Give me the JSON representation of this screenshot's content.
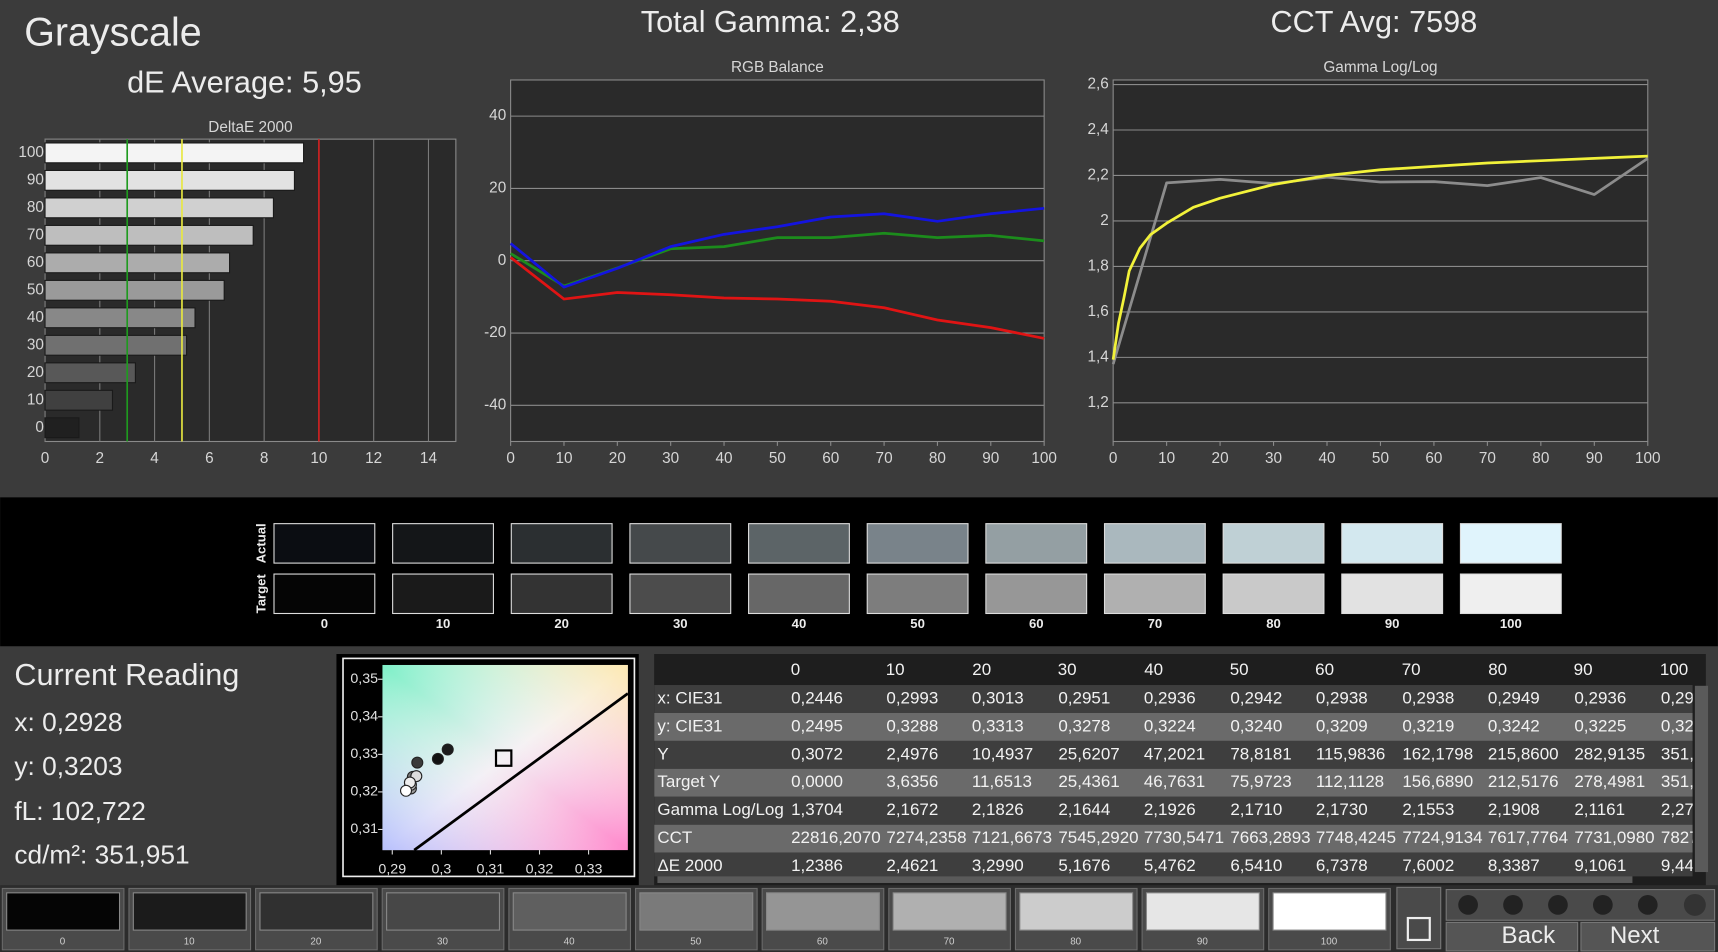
{
  "title": "Grayscale",
  "de_average": "dE Average: 5,95",
  "total_gamma": "Total Gamma: 2,38",
  "cct_avg": "CCT Avg: 7598",
  "chart_data": [
    {
      "type": "bar",
      "orientation": "horizontal",
      "title": "DeltaE 2000",
      "categories": [
        "100",
        "90",
        "80",
        "70",
        "60",
        "50",
        "40",
        "30",
        "20",
        "10",
        "0"
      ],
      "values": [
        9.44,
        9.1061,
        8.3387,
        7.6002,
        6.7378,
        6.541,
        5.4762,
        5.1676,
        3.299,
        2.4621,
        1.2386
      ],
      "colors": [
        "#f4f4f4",
        "#e2e2e2",
        "#d0d0d0",
        "#bebebe",
        "#acacac",
        "#9a9a9a",
        "#888888",
        "#707070",
        "#585858",
        "#404040",
        "#202020"
      ],
      "xlim": [
        0,
        15
      ],
      "xticks": [
        0,
        2,
        4,
        6,
        8,
        10,
        12,
        14
      ],
      "grid": true,
      "reference_lines": [
        {
          "value": 3,
          "color": "#1f9a1f"
        },
        {
          "value": 5,
          "color": "#e8e840"
        },
        {
          "value": 10,
          "color": "#d02020"
        }
      ]
    },
    {
      "type": "line",
      "title": "RGB Balance",
      "x": [
        0,
        10,
        20,
        30,
        40,
        50,
        60,
        70,
        80,
        90,
        100
      ],
      "series": [
        {
          "color": "#e01414",
          "values": [
            0.9,
            -10.6,
            -8.8,
            -9.4,
            -10.3,
            -10.6,
            -11.2,
            -13,
            -16.4,
            -18.5,
            -21.5
          ]
        },
        {
          "color": "#1c8c1c",
          "values": [
            2,
            -7,
            -2,
            3.3,
            3.9,
            6.4,
            6.4,
            7.6,
            6.4,
            7,
            5.5
          ]
        },
        {
          "color": "#1414e0",
          "values": [
            4.8,
            -7.3,
            -2.1,
            3.9,
            7.3,
            9.4,
            12.1,
            13,
            10.9,
            13,
            14.5
          ]
        }
      ],
      "xlim": [
        0,
        100
      ],
      "xticks": [
        0,
        10,
        20,
        30,
        40,
        50,
        60,
        70,
        80,
        90,
        100
      ],
      "ylim": [
        -50,
        50
      ],
      "yticks": [
        -40,
        -20,
        0,
        20,
        40
      ],
      "grid": true
    },
    {
      "type": "line",
      "title": "Gamma Log/Log",
      "series": [
        {
          "color": "#8c8c8c",
          "x": [
            0,
            10,
            20,
            30,
            40,
            50,
            60,
            70,
            80,
            90,
            100
          ],
          "values": [
            1.3704,
            2.1672,
            2.1826,
            2.1644,
            2.1926,
            2.171,
            2.173,
            2.1553,
            2.1908,
            2.1161,
            2.275
          ]
        },
        {
          "color": "#f2f23a",
          "x": [
            0,
            1,
            2,
            3,
            5,
            7,
            10,
            15,
            20,
            30,
            40,
            50,
            60,
            70,
            80,
            90,
            100
          ],
          "values": [
            1.39,
            1.55,
            1.66,
            1.78,
            1.88,
            1.94,
            1.99,
            2.06,
            2.1,
            2.16,
            2.2,
            2.225,
            2.24,
            2.255,
            2.265,
            2.275,
            2.285
          ]
        }
      ],
      "xlim": [
        0,
        100
      ],
      "xticks": [
        0,
        10,
        20,
        30,
        40,
        50,
        60,
        70,
        80,
        90,
        100
      ],
      "ylim": [
        1.03,
        2.62
      ],
      "yticks": [
        {
          "value": 1.2,
          "label": "1,2"
        },
        {
          "value": 1.4,
          "label": "1,4"
        },
        {
          "value": 1.6,
          "label": "1,6"
        },
        {
          "value": 1.8,
          "label": "1,8"
        },
        2,
        {
          "value": 2.2,
          "label": "2,2"
        },
        {
          "value": 2.4,
          "label": "2,4"
        },
        {
          "value": 2.6,
          "label": "2,6"
        }
      ],
      "grid": true
    },
    {
      "type": "scatter",
      "x": [
        0.2993,
        0.3013,
        0.2951,
        0.2936,
        0.2942,
        0.2938,
        0.2938,
        0.2949,
        0.2936,
        0.2928
      ],
      "y": [
        0.3288,
        0.3313,
        0.3278,
        0.3224,
        0.324,
        0.3209,
        0.3219,
        0.3242,
        0.3225,
        0.3203
      ],
      "colors": [
        "#111111",
        "#1c1c1c",
        "#3a3a3a",
        "#5a5a5a",
        "#7a7a7a",
        "#9a9a9a",
        "#bbbbbb",
        "#dddddd",
        "#eeeeee",
        "#ffffff"
      ],
      "target": {
        "x": 0.3127,
        "y": 0.329
      },
      "xlim": [
        0.288,
        0.338
      ],
      "xticks": [
        {
          "value": 0.29,
          "label": "0,29"
        },
        {
          "value": 0.3,
          "label": "0,3"
        },
        {
          "value": 0.31,
          "label": "0,31"
        },
        {
          "value": 0.32,
          "label": "0,32"
        },
        {
          "value": 0.33,
          "label": "0,33"
        }
      ],
      "ylim": [
        0.3045,
        0.3538
      ],
      "yticks": [
        {
          "value": 0.31,
          "label": "0,31"
        },
        {
          "value": 0.32,
          "label": "0,32"
        },
        {
          "value": 0.33,
          "label": "0,33"
        },
        {
          "value": 0.34,
          "label": "0,34"
        },
        {
          "value": 0.35,
          "label": "0,35"
        }
      ]
    }
  ],
  "swatches": {
    "row_labels": [
      "Actual",
      "Target"
    ],
    "columns": [
      "0",
      "10",
      "20",
      "30",
      "40",
      "50",
      "60",
      "70",
      "80",
      "90",
      "100"
    ],
    "actual": [
      "#0b0d12",
      "#141618",
      "#2b2f31",
      "#45494b",
      "#5c6467",
      "#79838a",
      "#949fa3",
      "#aab8be",
      "#bfd0d5",
      "#d3e8ef",
      "#e0f4fc"
    ],
    "target": [
      "#050505",
      "#1a1a1a",
      "#333333",
      "#4c4c4c",
      "#676767",
      "#7d7d7d",
      "#979797",
      "#b0b0b0",
      "#c9c9c9",
      "#e2e2e2",
      "#efefef"
    ]
  },
  "current_reading": {
    "title": "Current Reading",
    "lines": [
      "x: 0,2928",
      "y: 0,3203",
      "fL: 102,722",
      "cd/m²: 351,951"
    ]
  },
  "table": {
    "columns": [
      "0",
      "10",
      "20",
      "30",
      "40",
      "50",
      "60",
      "70",
      "80",
      "90",
      "100"
    ],
    "rows": [
      {
        "label": "x: CIE31",
        "values": [
          "0,2446",
          "0,2993",
          "0,3013",
          "0,2951",
          "0,2936",
          "0,2942",
          "0,2938",
          "0,2938",
          "0,2949",
          "0,2936",
          "0,29"
        ]
      },
      {
        "label": "y: CIE31",
        "values": [
          "0,2495",
          "0,3288",
          "0,3313",
          "0,3278",
          "0,3224",
          "0,3240",
          "0,3209",
          "0,3219",
          "0,3242",
          "0,3225",
          "0,32"
        ]
      },
      {
        "label": "Y",
        "values": [
          "0,3072",
          "2,4976",
          "10,4937",
          "25,6207",
          "47,2021",
          "78,8181",
          "115,9836",
          "162,1798",
          "215,8600",
          "282,9135",
          "351,"
        ]
      },
      {
        "label": "Target Y",
        "values": [
          "0,0000",
          "3,6356",
          "11,6513",
          "25,4361",
          "46,7631",
          "75,9723",
          "112,1128",
          "156,6890",
          "212,5176",
          "278,4981",
          "351,"
        ]
      },
      {
        "label": "Gamma Log/Log",
        "values": [
          "1,3704",
          "2,1672",
          "2,1826",
          "2,1644",
          "2,1926",
          "2,1710",
          "2,1730",
          "2,1553",
          "2,1908",
          "2,1161",
          "2,27"
        ]
      },
      {
        "label": "CCT",
        "values": [
          "22816,2070",
          "7274,2358",
          "7121,6673",
          "7545,2920",
          "7730,5471",
          "7663,2893",
          "7748,4245",
          "7724,9134",
          "7617,7764",
          "7731,0980",
          "7827"
        ]
      },
      {
        "label": "ΔE 2000",
        "values": [
          "1,2386",
          "2,4621",
          "3,2990",
          "5,1676",
          "5,4762",
          "6,5410",
          "6,7378",
          "7,6002",
          "8,3387",
          "9,1061",
          "9,44"
        ]
      }
    ]
  },
  "patch_buttons": {
    "labels": [
      "0",
      "10",
      "20",
      "30",
      "40",
      "50",
      "60",
      "70",
      "80",
      "90",
      "100"
    ],
    "colors": [
      "#050505",
      "#1b1b1b",
      "#303030",
      "#474747",
      "#5f5f5f",
      "#7a7a7a",
      "#959595",
      "#b0b0b0",
      "#cccccc",
      "#e6e6e6",
      "#ffffff"
    ]
  },
  "navigation": {
    "back": "Back",
    "next": "Next"
  }
}
